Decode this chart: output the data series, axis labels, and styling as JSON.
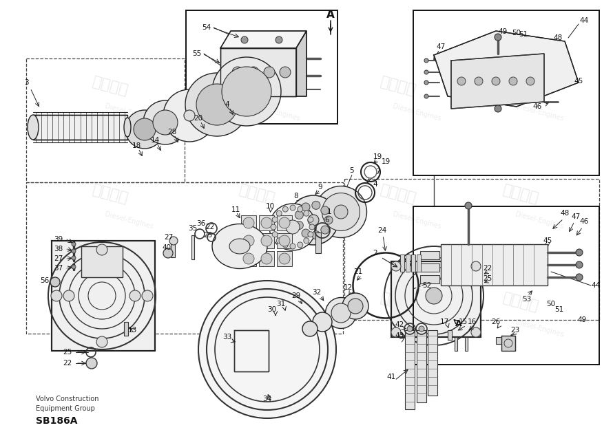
{
  "bg_color": "#ffffff",
  "bottom_left_text1": "Volvo Construction",
  "bottom_left_text2": "Equipment Group",
  "bottom_left_text3": "SB186A",
  "fig_width": 8.9,
  "fig_height": 6.28,
  "dpi": 100
}
